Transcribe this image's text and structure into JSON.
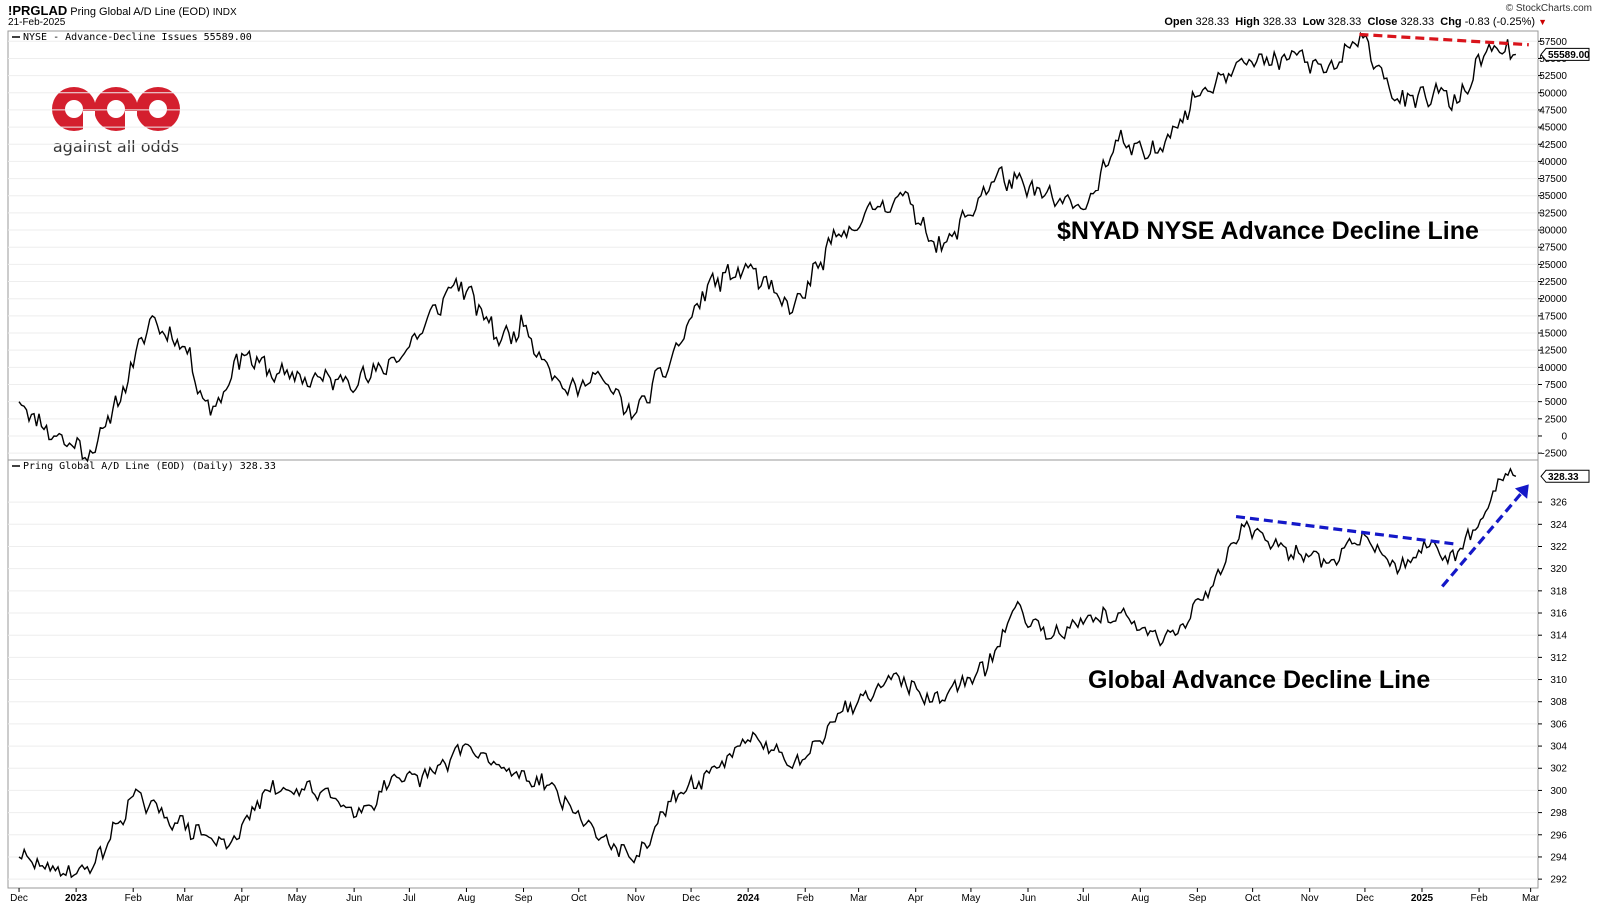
{
  "header": {
    "symbol": "!PRGLAD",
    "name": "Pring Global A/D Line (EOD)",
    "exchange": "INDX",
    "date": "21-Feb-2025",
    "brand": "© StockCharts.com",
    "quote": {
      "open_label": "Open",
      "open": "328.33",
      "high_label": "High",
      "high": "328.33",
      "low_label": "Low",
      "low": "328.33",
      "close_label": "Close",
      "close": "328.33",
      "chg_label": "Chg",
      "chg": "-0.83 (-0.25%)"
    }
  },
  "logo": {
    "tagline": "against all odds"
  },
  "colors": {
    "line": "#000000",
    "red_trend": "#d9141b",
    "blue_trend": "#1418c8",
    "logo_red": "#d41f2e",
    "grid": "#dddddd"
  },
  "chart_data": [
    {
      "type": "line",
      "legend": "NYSE - Advance-Decline Issues 55589.00",
      "annotation": "$NYAD NYSE Advance Decline Line",
      "last_value_label": "55589.00",
      "ylim": [
        -3500,
        59000
      ],
      "yticks": [
        "57500",
        "55000",
        "52500",
        "50000",
        "47500",
        "45000",
        "42500",
        "40000",
        "37500",
        "35000",
        "32500",
        "30000",
        "27500",
        "25000",
        "22500",
        "20000",
        "17500",
        "15000",
        "12500",
        "10000",
        "7500",
        "5000",
        "2500",
        "0",
        "-2500"
      ],
      "series": [
        {
          "x": [
            "2022-12-01",
            "2022-12-20",
            "2023-01-10",
            "2023-02-01",
            "2023-02-10",
            "2023-03-01",
            "2023-03-15",
            "2023-04-01",
            "2023-04-20",
            "2023-05-15",
            "2023-06-10",
            "2023-07-01",
            "2023-07-25",
            "2023-08-01",
            "2023-08-20",
            "2023-09-01",
            "2023-09-25",
            "2023-10-10",
            "2023-10-31",
            "2023-11-20",
            "2023-12-10",
            "2024-01-01",
            "2024-01-25",
            "2024-02-15",
            "2024-03-10",
            "2024-03-25",
            "2024-04-15",
            "2024-05-15",
            "2024-06-10",
            "2024-07-01",
            "2024-07-20",
            "2024-08-05",
            "2024-08-20",
            "2024-09-01",
            "2024-09-25",
            "2024-10-10",
            "2024-10-25",
            "2024-11-10",
            "2024-11-30",
            "2024-12-20",
            "2025-01-10",
            "2025-01-20",
            "2025-02-05",
            "2025-02-15",
            "2025-02-21"
          ],
          "y": [
            5000,
            0,
            -2500,
            10000,
            17000,
            13000,
            3000,
            12000,
            9000,
            8000,
            8500,
            13000,
            22000,
            21000,
            14000,
            16000,
            6000,
            9000,
            3000,
            11000,
            22000,
            24500,
            18000,
            28000,
            33000,
            35000,
            27000,
            38000,
            35000,
            33000,
            43000,
            40500,
            45000,
            49500,
            55000,
            54000,
            55500,
            53000,
            58000,
            48500,
            50000,
            48500,
            56000,
            56000,
            55589
          ]
        }
      ],
      "trendline": {
        "color": "red",
        "x": [
          "2024-11-28",
          "2025-02-28"
        ],
        "y": [
          58500,
          57000
        ]
      }
    },
    {
      "type": "line",
      "legend": "Pring Global A/D Line (EOD) (Daily) 328.33",
      "annotation": "Global Advance Decline Line",
      "last_value_label": "328.33",
      "ylim": [
        291.2,
        329.8
      ],
      "yticks": [
        "326",
        "324",
        "322",
        "320",
        "318",
        "316",
        "314",
        "312",
        "310",
        "308",
        "306",
        "304",
        "302",
        "300",
        "298",
        "296",
        "294",
        "292"
      ],
      "series": [
        {
          "x": [
            "2022-12-01",
            "2022-12-25",
            "2023-01-10",
            "2023-02-01",
            "2023-02-15",
            "2023-03-10",
            "2023-03-25",
            "2023-04-15",
            "2023-05-15",
            "2023-06-05",
            "2023-06-20",
            "2023-07-15",
            "2023-07-30",
            "2023-08-20",
            "2023-09-15",
            "2023-10-05",
            "2023-10-31",
            "2023-11-20",
            "2023-12-15",
            "2024-01-05",
            "2024-01-25",
            "2024-02-20",
            "2024-03-20",
            "2024-04-10",
            "2024-04-25",
            "2024-05-10",
            "2024-05-25",
            "2024-06-15",
            "2024-07-01",
            "2024-07-20",
            "2024-08-05",
            "2024-08-20",
            "2024-09-15",
            "2024-09-25",
            "2024-10-15",
            "2024-11-10",
            "2024-12-01",
            "2024-12-20",
            "2025-01-05",
            "2025-01-15",
            "2025-01-30",
            "2025-02-10",
            "2025-02-18",
            "2025-02-21"
          ],
          "y": [
            294,
            292.5,
            293,
            299.5,
            298,
            296,
            295,
            300,
            300,
            298,
            300.5,
            301.5,
            304,
            302,
            300.5,
            297,
            293.5,
            299,
            302,
            305,
            302,
            307,
            310.5,
            308,
            309.5,
            311,
            316.5,
            314,
            315,
            316,
            314,
            314,
            320,
            324,
            322,
            320.5,
            323,
            320,
            322,
            320.5,
            323.5,
            327,
            329,
            328.33
          ]
        }
      ],
      "trendlines": [
        {
          "color": "blue",
          "style": "dashed",
          "x": [
            "2024-09-22",
            "2025-01-20"
          ],
          "y": [
            324.7,
            322.2
          ]
        },
        {
          "color": "blue",
          "style": "arrow",
          "x": [
            "2025-01-12",
            "2025-02-28"
          ],
          "y": [
            318.4,
            327.6
          ]
        }
      ]
    }
  ],
  "x_axis": {
    "start": "2022-11-25",
    "end": "2025-03-05",
    "ticks": [
      {
        "label": "Dec",
        "date": "2022-12-01"
      },
      {
        "label": "2023",
        "date": "2023-01-01",
        "bold": true
      },
      {
        "label": "Feb",
        "date": "2023-02-01"
      },
      {
        "label": "Mar",
        "date": "2023-03-01"
      },
      {
        "label": "Apr",
        "date": "2023-04-01"
      },
      {
        "label": "May",
        "date": "2023-05-01"
      },
      {
        "label": "Jun",
        "date": "2023-06-01"
      },
      {
        "label": "Jul",
        "date": "2023-07-01"
      },
      {
        "label": "Aug",
        "date": "2023-08-01"
      },
      {
        "label": "Sep",
        "date": "2023-09-01"
      },
      {
        "label": "Oct",
        "date": "2023-10-01"
      },
      {
        "label": "Nov",
        "date": "2023-11-01"
      },
      {
        "label": "Dec",
        "date": "2023-12-01"
      },
      {
        "label": "2024",
        "date": "2024-01-01",
        "bold": true
      },
      {
        "label": "Feb",
        "date": "2024-02-01"
      },
      {
        "label": "Mar",
        "date": "2024-03-01"
      },
      {
        "label": "Apr",
        "date": "2024-04-01"
      },
      {
        "label": "May",
        "date": "2024-05-01"
      },
      {
        "label": "Jun",
        "date": "2024-06-01"
      },
      {
        "label": "Jul",
        "date": "2024-07-01"
      },
      {
        "label": "Aug",
        "date": "2024-08-01"
      },
      {
        "label": "Sep",
        "date": "2024-09-01"
      },
      {
        "label": "Oct",
        "date": "2024-10-01"
      },
      {
        "label": "Nov",
        "date": "2024-11-01"
      },
      {
        "label": "Dec",
        "date": "2024-12-01"
      },
      {
        "label": "2025",
        "date": "2025-01-01",
        "bold": true
      },
      {
        "label": "Feb",
        "date": "2025-02-01"
      },
      {
        "label": "Mar",
        "date": "2025-03-01"
      }
    ]
  }
}
